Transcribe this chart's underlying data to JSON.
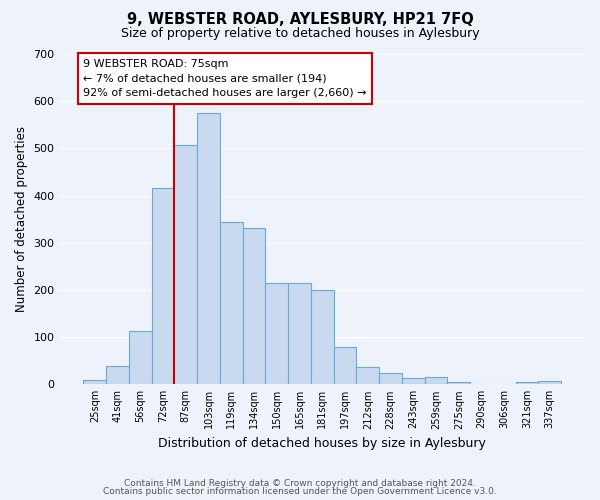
{
  "title": "9, WEBSTER ROAD, AYLESBURY, HP21 7FQ",
  "subtitle": "Size of property relative to detached houses in Aylesbury",
  "xlabel": "Distribution of detached houses by size in Aylesbury",
  "ylabel": "Number of detached properties",
  "bar_color": "#c8d9f0",
  "bar_edge_color": "#6aaad4",
  "background_color": "#eef2fa",
  "grid_color": "#ffffff",
  "categories": [
    "25sqm",
    "41sqm",
    "56sqm",
    "72sqm",
    "87sqm",
    "103sqm",
    "119sqm",
    "134sqm",
    "150sqm",
    "165sqm",
    "181sqm",
    "197sqm",
    "212sqm",
    "228sqm",
    "243sqm",
    "259sqm",
    "275sqm",
    "290sqm",
    "306sqm",
    "321sqm",
    "337sqm"
  ],
  "values": [
    10,
    38,
    113,
    415,
    507,
    575,
    344,
    332,
    215,
    215,
    200,
    80,
    37,
    25,
    14,
    15,
    5,
    0,
    0,
    5,
    7
  ],
  "vline_x_index": 3.5,
  "vline_color": "#cc0000",
  "annotation_title": "9 WEBSTER ROAD: 75sqm",
  "annotation_line1": "← 7% of detached houses are smaller (194)",
  "annotation_line2": "92% of semi-detached houses are larger (2,660) →",
  "annotation_box_color": "#ffffff",
  "annotation_box_edge": "#cc0000",
  "ylim": [
    0,
    700
  ],
  "yticks": [
    0,
    100,
    200,
    300,
    400,
    500,
    600,
    700
  ],
  "footer1": "Contains HM Land Registry data © Crown copyright and database right 2024.",
  "footer2": "Contains public sector information licensed under the Open Government Licence v3.0."
}
